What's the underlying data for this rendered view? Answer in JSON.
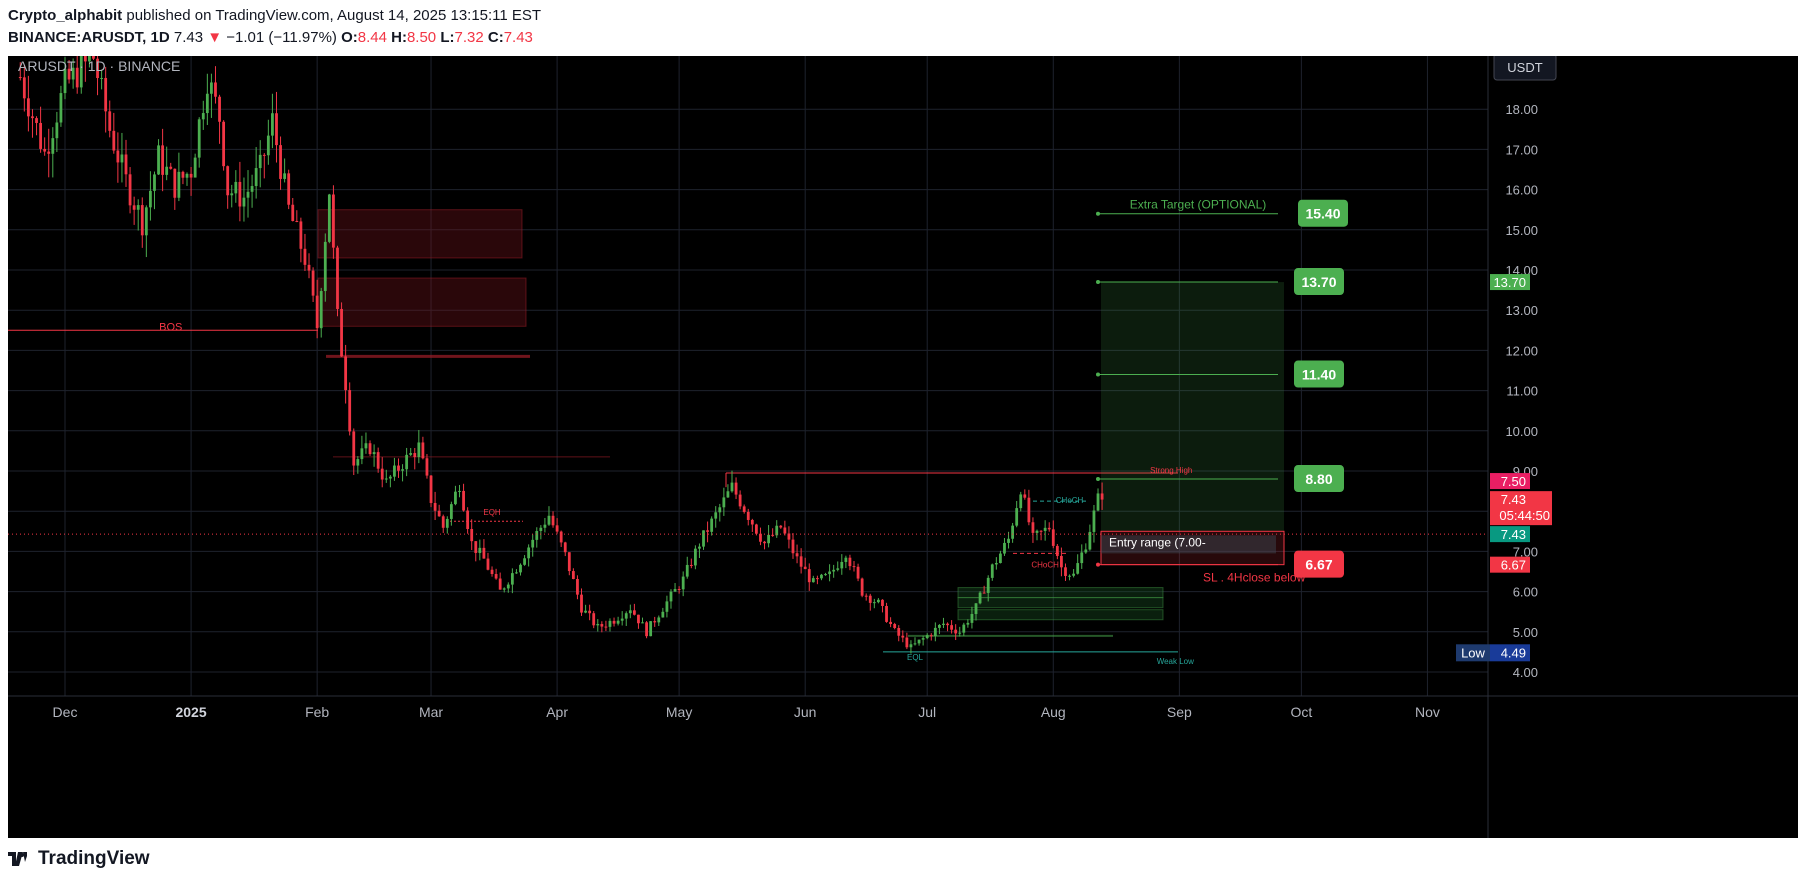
{
  "header": {
    "author": "Crypto_alphabit",
    "published_text": "published on TradingView.com, August 14, 2025 13:15:11 EST",
    "symbol": "BINANCE:ARUSDT, 1D",
    "last": "7.43",
    "change_arrow": "▼",
    "change": "−1.01 (−11.97%)",
    "o_label": "O:",
    "o": "8.44",
    "h_label": "H:",
    "h": "8.50",
    "l_label": "L:",
    "l": "7.32",
    "c_label": "C:",
    "c": "7.43"
  },
  "chart_title": "ARUSDT · 1D · BINANCE",
  "currency_button": "USDT",
  "footer": {
    "brand": "TradingView"
  },
  "colors": {
    "up": "#4caf50",
    "down": "#f23645",
    "background": "#000000",
    "grid": "#1e222d",
    "axis_text": "#b2b5be",
    "target": "#4caf50",
    "stop": "#f23645",
    "low_badge": "#1e3a6e"
  },
  "chart_data": {
    "type": "candlestick",
    "symbol": "ARUSDT",
    "interval": "1D",
    "x_ticks": [
      "Dec",
      "2025",
      "Feb",
      "Mar",
      "Apr",
      "May",
      "Jun",
      "Jul",
      "Aug",
      "Sep",
      "Oct",
      "Nov"
    ],
    "y_ticks": [
      "4.00",
      "5.00",
      "6.00",
      "7.00",
      "8.00",
      "9.00",
      "10.00",
      "11.00",
      "12.00",
      "13.00",
      "14.00",
      "15.00",
      "16.00",
      "17.00",
      "18.00"
    ],
    "ylim": [
      3.4,
      19.5
    ],
    "last_price": 7.43,
    "countdown": "05:44:50",
    "scale_labels": {
      "target_top": "13.70",
      "strong_high": "7.50",
      "last_a": "7.43",
      "last_b": "7.43",
      "stop": "6.67",
      "low_label": "Low",
      "low_value": "4.49"
    },
    "price_path": [
      [
        "2024-11-20",
        18.8
      ],
      [
        "2024-11-26",
        16.9
      ],
      [
        "2024-12-01",
        18.6
      ],
      [
        "2024-12-08",
        19.3
      ],
      [
        "2024-12-12",
        17.5
      ],
      [
        "2024-12-16",
        16.2
      ],
      [
        "2024-12-20",
        15.2
      ],
      [
        "2024-12-24",
        16.8
      ],
      [
        "2024-12-28",
        16.1
      ],
      [
        "2025-01-01",
        16.5
      ],
      [
        "2025-01-05",
        18.8
      ],
      [
        "2025-01-08",
        17.8
      ],
      [
        "2025-01-10",
        16.0
      ],
      [
        "2025-01-14",
        15.8
      ],
      [
        "2025-01-18",
        16.5
      ],
      [
        "2025-01-21",
        17.7
      ],
      [
        "2025-01-25",
        15.5
      ],
      [
        "2025-01-29",
        14.3
      ],
      [
        "2025-02-01",
        12.6
      ],
      [
        "2025-02-04",
        16.0
      ],
      [
        "2025-02-06",
        12.8
      ],
      [
        "2025-02-08",
        11.2
      ],
      [
        "2025-02-10",
        9.2
      ],
      [
        "2025-02-14",
        9.6
      ],
      [
        "2025-02-18",
        8.7
      ],
      [
        "2025-02-22",
        9.2
      ],
      [
        "2025-02-26",
        9.6
      ],
      [
        "2025-03-01",
        8.3
      ],
      [
        "2025-03-04",
        7.6
      ],
      [
        "2025-03-08",
        8.7
      ],
      [
        "2025-03-11",
        7.2
      ],
      [
        "2025-03-14",
        6.8
      ],
      [
        "2025-03-18",
        6.0
      ],
      [
        "2025-03-22",
        6.6
      ],
      [
        "2025-03-26",
        7.3
      ],
      [
        "2025-03-30",
        7.9
      ],
      [
        "2025-04-03",
        6.9
      ],
      [
        "2025-04-07",
        5.6
      ],
      [
        "2025-04-11",
        5.1
      ],
      [
        "2025-04-15",
        5.3
      ],
      [
        "2025-04-19",
        5.6
      ],
      [
        "2025-04-23",
        5.0
      ],
      [
        "2025-04-27",
        5.6
      ],
      [
        "2025-05-02",
        6.3
      ],
      [
        "2025-05-06",
        7.2
      ],
      [
        "2025-05-10",
        7.9
      ],
      [
        "2025-05-14",
        8.6
      ],
      [
        "2025-05-18",
        7.9
      ],
      [
        "2025-05-22",
        7.2
      ],
      [
        "2025-05-26",
        7.6
      ],
      [
        "2025-05-30",
        6.8
      ],
      [
        "2025-06-03",
        6.2
      ],
      [
        "2025-06-07",
        6.4
      ],
      [
        "2025-06-11",
        7.0
      ],
      [
        "2025-06-15",
        6.0
      ],
      [
        "2025-06-19",
        5.7
      ],
      [
        "2025-06-23",
        5.0
      ],
      [
        "2025-06-27",
        4.6
      ],
      [
        "2025-07-01",
        4.9
      ],
      [
        "2025-07-05",
        5.2
      ],
      [
        "2025-07-09",
        5.0
      ],
      [
        "2025-07-13",
        5.6
      ],
      [
        "2025-07-17",
        6.6
      ],
      [
        "2025-07-21",
        7.3
      ],
      [
        "2025-07-24",
        8.6
      ],
      [
        "2025-07-27",
        7.3
      ],
      [
        "2025-07-31",
        7.6
      ],
      [
        "2025-08-03",
        6.6
      ],
      [
        "2025-08-06",
        6.4
      ],
      [
        "2025-08-09",
        7.2
      ],
      [
        "2025-08-12",
        8.3
      ],
      [
        "2025-08-13",
        8.44
      ],
      [
        "2025-08-14",
        7.43
      ]
    ],
    "levels": [
      {
        "label": "Extra Target (OPTIONAL)",
        "value": 15.4,
        "badge": "15.40",
        "kind": "target"
      },
      {
        "label": "",
        "value": 13.7,
        "badge": "13.70",
        "kind": "target"
      },
      {
        "label": "",
        "value": 11.4,
        "badge": "11.40",
        "kind": "target"
      },
      {
        "label": "",
        "value": 8.8,
        "badge": "8.80",
        "kind": "target"
      },
      {
        "label": "SL . 4Hclose below",
        "value": 6.67,
        "badge": "6.67",
        "kind": "stop"
      }
    ],
    "entry": {
      "label": "Entry range   (7.00-",
      "high": 7.5,
      "low": 7.0
    },
    "annotations": [
      {
        "text": "BOS",
        "value": 12.5,
        "date": "2024-12-27",
        "color": "#f23645"
      },
      {
        "text": "EQH",
        "value": 7.9,
        "date": "2025-03-16",
        "color": "#f23645"
      },
      {
        "text": "Strong High",
        "value": 8.95,
        "date": "2025-08-30",
        "color": "#f23645"
      },
      {
        "text": "CHoCH",
        "value": 8.2,
        "date": "2025-08-05",
        "color": "#26a69a"
      },
      {
        "text": "CHoCH",
        "value": 6.6,
        "date": "2025-07-30",
        "color": "#f23645"
      },
      {
        "text": "EQL",
        "value": 4.3,
        "date": "2025-06-28",
        "color": "#26a69a"
      },
      {
        "text": "Weak Low",
        "value": 4.2,
        "date": "2025-08-31",
        "color": "#26a69a"
      }
    ]
  }
}
